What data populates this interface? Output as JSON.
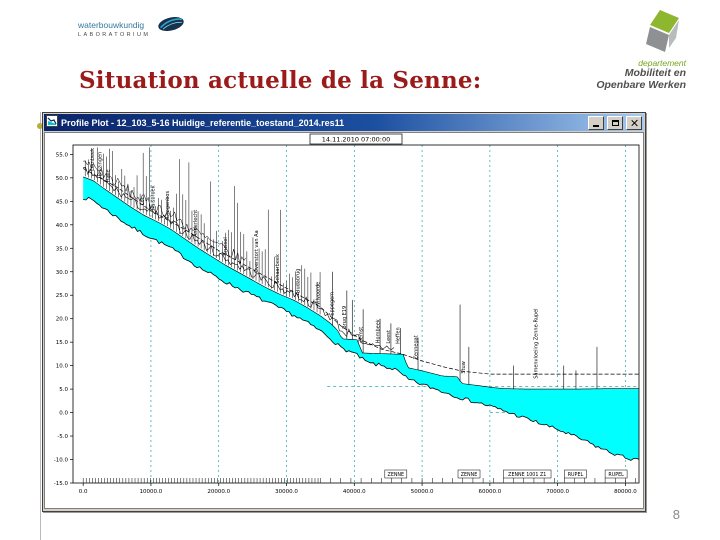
{
  "slide": {
    "title": "Situation actuelle de la Senne:",
    "page_number": "8",
    "title_color": "#9b1a1a"
  },
  "logo_left": {
    "line1": "waterbouwkundig",
    "line2": "LABORATORIUM"
  },
  "logo_right": {
    "line1": "departement",
    "line2": "Mobiliteit en",
    "line3": "Openbare Werken",
    "green": "#8db72e",
    "gray": "#8f9092"
  },
  "window": {
    "title": "Profile Plot - 12_103_5-16 Huidige_referentie_toestand_2014.res11",
    "buttons": {
      "minimize": "minimize",
      "maximize": "maximize",
      "close": "close"
    }
  },
  "chart_data": {
    "type": "area",
    "datetime_label": "14.11.2010 07:00:00",
    "x_range": [
      0,
      82000
    ],
    "y_range": [
      -15,
      57
    ],
    "x_ticks": [
      0,
      10000,
      20000,
      30000,
      40000,
      50000,
      60000,
      70000,
      80000
    ],
    "y_ticks": [
      55,
      50,
      45,
      40,
      35,
      30,
      25,
      20,
      15,
      10,
      5,
      0,
      -5,
      -10,
      -15
    ],
    "water_color": "#00ffff",
    "grid_color": "#009898",
    "water_surface": [
      [
        0,
        50.2
      ],
      [
        1500,
        49.4
      ],
      [
        3000,
        47.8
      ],
      [
        5000,
        45.8
      ],
      [
        7000,
        43.8
      ],
      [
        9000,
        42.0
      ],
      [
        11000,
        40.6
      ],
      [
        13000,
        39.0
      ],
      [
        15000,
        37.0
      ],
      [
        17000,
        35.0
      ],
      [
        19000,
        33.2
      ],
      [
        21000,
        31.4
      ],
      [
        23000,
        29.8
      ],
      [
        25000,
        28.2
      ],
      [
        27000,
        26.6
      ],
      [
        29000,
        25.2
      ],
      [
        31000,
        24.0
      ],
      [
        33000,
        22.4
      ],
      [
        35000,
        20.6
      ],
      [
        36500,
        19.0
      ],
      [
        37500,
        17.6
      ],
      [
        38200,
        15.7
      ],
      [
        40600,
        15.5
      ],
      [
        41000,
        12.7
      ],
      [
        47300,
        12.4
      ],
      [
        47800,
        9.6
      ],
      [
        50000,
        8.9
      ],
      [
        53000,
        7.8
      ],
      [
        55300,
        7.6
      ],
      [
        55800,
        6.2
      ],
      [
        58000,
        5.8
      ],
      [
        60000,
        5.4
      ],
      [
        62000,
        5.1
      ],
      [
        66000,
        5.0
      ],
      [
        72000,
        5.0
      ],
      [
        78000,
        5.1
      ],
      [
        82000,
        5.1
      ]
    ],
    "bed_profile": [
      [
        0,
        45.8
      ],
      [
        1500,
        45.2
      ],
      [
        3000,
        43.6
      ],
      [
        5000,
        41.6
      ],
      [
        7000,
        39.6
      ],
      [
        9000,
        38.0
      ],
      [
        11000,
        36.5
      ],
      [
        13000,
        35.0
      ],
      [
        15000,
        33.0
      ],
      [
        17000,
        31.0
      ],
      [
        19000,
        29.4
      ],
      [
        21000,
        27.8
      ],
      [
        23000,
        26.4
      ],
      [
        25000,
        25.0
      ],
      [
        27000,
        23.6
      ],
      [
        29000,
        22.2
      ],
      [
        31000,
        20.8
      ],
      [
        33000,
        19.2
      ],
      [
        35000,
        17.4
      ],
      [
        36500,
        15.8
      ],
      [
        38000,
        13.8
      ],
      [
        40000,
        12.6
      ],
      [
        42000,
        10.6
      ],
      [
        44000,
        10.0
      ],
      [
        46000,
        9.2
      ],
      [
        48000,
        7.0
      ],
      [
        50000,
        6.0
      ],
      [
        52000,
        5.0
      ],
      [
        54000,
        4.0
      ],
      [
        56000,
        3.0
      ],
      [
        58000,
        2.2
      ],
      [
        60000,
        1.4
      ],
      [
        62000,
        0.4
      ],
      [
        64000,
        -0.6
      ],
      [
        66000,
        -1.6
      ],
      [
        68000,
        -2.6
      ],
      [
        70000,
        -3.6
      ],
      [
        72000,
        -4.8
      ],
      [
        74000,
        -6.0
      ],
      [
        76000,
        -7.4
      ],
      [
        78000,
        -8.6
      ],
      [
        80000,
        -9.6
      ],
      [
        82000,
        -10.2
      ]
    ],
    "dike_line": [
      [
        0,
        52
      ],
      [
        5000,
        48
      ],
      [
        10000,
        43
      ],
      [
        15000,
        39
      ],
      [
        20000,
        34.5
      ],
      [
        25000,
        30.5
      ],
      [
        30000,
        26.5
      ],
      [
        35000,
        22.5
      ],
      [
        38000,
        18.5
      ],
      [
        41000,
        15.5
      ],
      [
        44000,
        13.5
      ],
      [
        47000,
        12.5
      ],
      [
        50000,
        11.0
      ],
      [
        53000,
        9.8
      ],
      [
        56000,
        8.8
      ],
      [
        60000,
        8.2
      ],
      [
        82000,
        8.2
      ]
    ],
    "ref_lines": [
      {
        "y": 5.6,
        "from": 36000,
        "to": 82000
      },
      {
        "y": 0,
        "from": 60000,
        "to": 82000
      }
    ],
    "station_labels": [
      {
        "x": 1600,
        "label": "Lembeek"
      },
      {
        "x": 2700,
        "label": "Buizingen"
      },
      {
        "x": 3900,
        "label": "Halle"
      },
      {
        "x": 9000,
        "label": "Lot"
      },
      {
        "x": 10500,
        "label": "Ruisbroek"
      },
      {
        "x": 12700,
        "label": "Drogenbos"
      },
      {
        "x": 16800,
        "label": "Anderlecht"
      },
      {
        "x": 21200,
        "label": "Brussel"
      },
      {
        "x": 25800,
        "label": "Overstort van Aa"
      },
      {
        "x": 28900,
        "label": "Schaarbeek"
      },
      {
        "x": 31900,
        "label": "Budabrug"
      },
      {
        "x": 34900,
        "label": "Vilvoorde"
      },
      {
        "x": 36900,
        "label": "Eppegem"
      },
      {
        "x": 38800,
        "label": "Brug E19"
      },
      {
        "x": 41200,
        "label": "Zemst"
      },
      {
        "x": 43700,
        "label": "Hombeek"
      },
      {
        "x": 45300,
        "label": "Leest"
      },
      {
        "x": 46700,
        "label": "Heffen"
      },
      {
        "x": 49300,
        "label": "Zennegat"
      },
      {
        "x": 56300,
        "label": "Stuw"
      },
      {
        "x": 67000,
        "label": "Samenvloeiing Zenne-Rupel"
      }
    ],
    "reach_boxes": [
      {
        "x": 44500,
        "label": "ZENNE"
      },
      {
        "x": 55300,
        "label": "ZENNE"
      },
      {
        "x": 62000,
        "label": "ZENNE 1001 Z1"
      },
      {
        "x": 71000,
        "label": "RUPEL"
      },
      {
        "x": 77000,
        "label": "RUPEL"
      }
    ],
    "spikes": {
      "dense_step": 450,
      "dense_until": 35000,
      "isolated": [
        {
          "x": 36800,
          "top": 30
        },
        {
          "x": 38900,
          "top": 26
        },
        {
          "x": 39700,
          "top": 24
        },
        {
          "x": 41300,
          "top": 22
        },
        {
          "x": 43800,
          "top": 20
        },
        {
          "x": 45400,
          "top": 19
        },
        {
          "x": 46800,
          "top": 18
        },
        {
          "x": 49400,
          "top": 16
        },
        {
          "x": 55600,
          "top": 23
        },
        {
          "x": 56900,
          "top": 14
        },
        {
          "x": 63500,
          "top": 10
        },
        {
          "x": 70900,
          "top": 10
        },
        {
          "x": 72700,
          "top": 9
        },
        {
          "x": 75800,
          "top": 14
        }
      ]
    }
  }
}
